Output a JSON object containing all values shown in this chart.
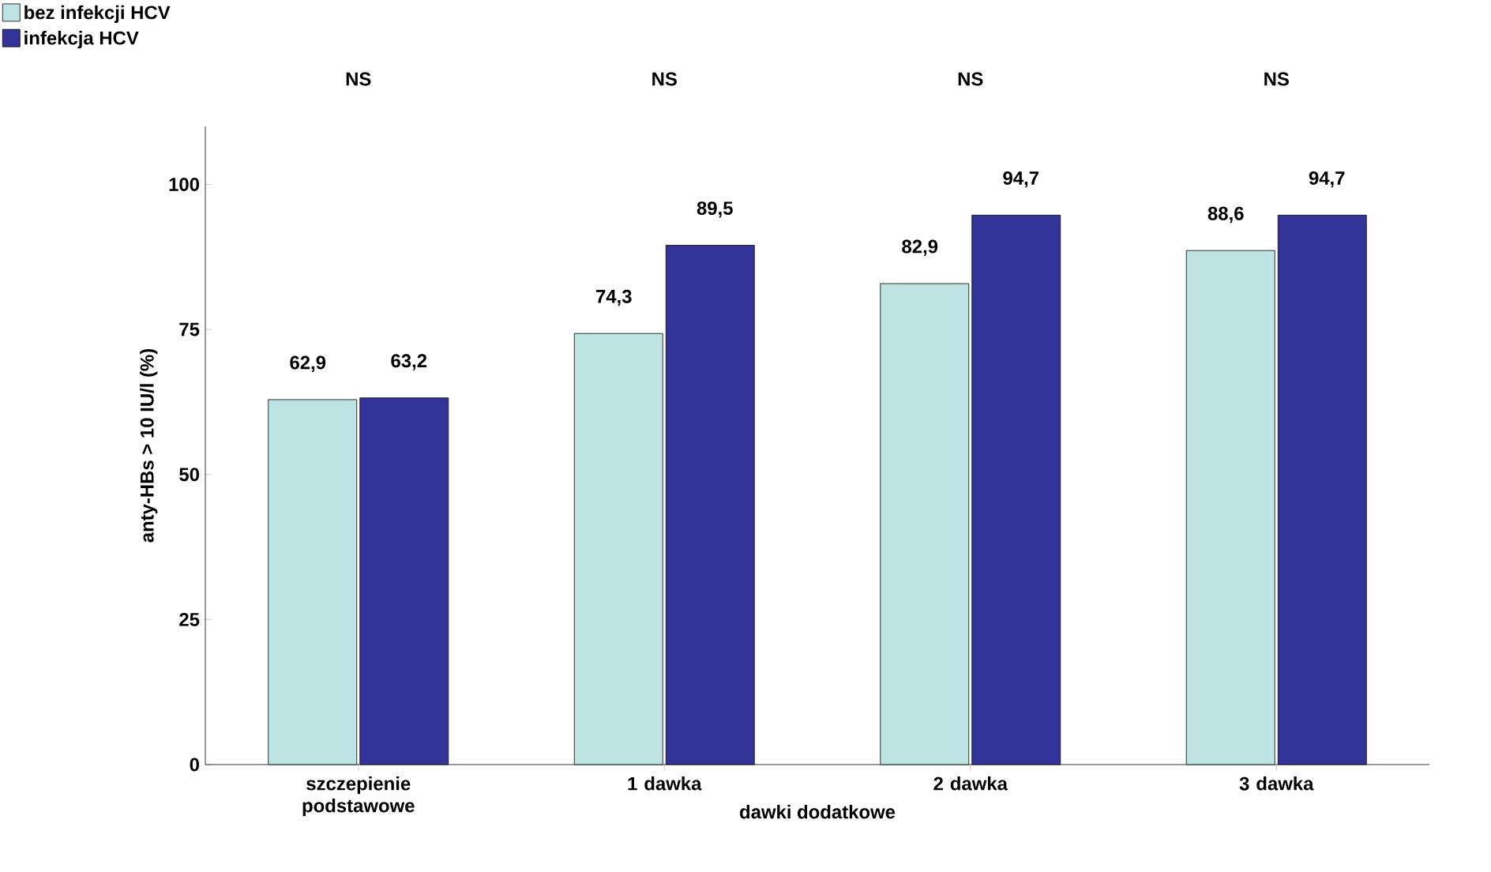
{
  "chart_data": {
    "type": "bar",
    "xlabel": "dawki dodatkowe",
    "ylabel": "anty-HBs > 10 IU/l (%)",
    "categories": [
      "szczepienie podstawowe",
      "1 dawka",
      "2 dawka",
      "3 dawka"
    ],
    "series": [
      {
        "name": "bez infekcji HCV",
        "color": "#bde3e3",
        "values": [
          62.9,
          74.3,
          82.9,
          88.6
        ],
        "value_labels": [
          "62,9",
          "74,3",
          "82,9",
          "88,6"
        ]
      },
      {
        "name": "infekcja HCV",
        "color": "#333399",
        "values": [
          63.2,
          89.5,
          94.7,
          94.7
        ],
        "value_labels": [
          "63,2",
          "89,5",
          "94,7",
          "94,7"
        ]
      }
    ],
    "annotations": [
      "NS",
      "NS",
      "NS",
      "NS"
    ],
    "ylim": [
      0,
      110
    ],
    "yticks": [
      0,
      25,
      50,
      75,
      100
    ],
    "grid": false,
    "legend": "top left"
  }
}
